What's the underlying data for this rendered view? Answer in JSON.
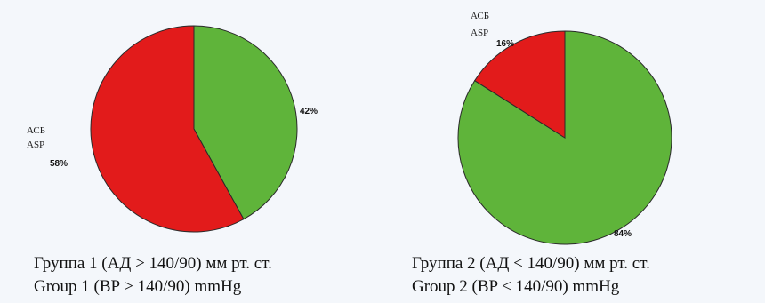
{
  "chart_data": [
    {
      "type": "pie",
      "caption_ru": "Группа 1 (АД > 140/90) мм рт. ст.",
      "caption_en": "Group 1 (BP > 140/90) mmHg",
      "slices": [
        {
          "label_ru": "АСБ",
          "label_en": "ASP",
          "value": 58,
          "value_label": "58%",
          "color": "#e21b1b"
        },
        {
          "label_ru": "",
          "label_en": "",
          "value": 42,
          "value_label": "42%",
          "color": "#5fb43a"
        }
      ]
    },
    {
      "type": "pie",
      "caption_ru": "Группа 2 (АД < 140/90) мм рт. ст.",
      "caption_en": "Group 2 (BP < 140/90) mmHg",
      "slices": [
        {
          "label_ru": "АСБ",
          "label_en": "ASP",
          "value": 16,
          "value_label": "16%",
          "color": "#e21b1b"
        },
        {
          "label_ru": "",
          "label_en": "",
          "value": 84,
          "value_label": "84%",
          "color": "#5fb43a"
        }
      ]
    }
  ]
}
